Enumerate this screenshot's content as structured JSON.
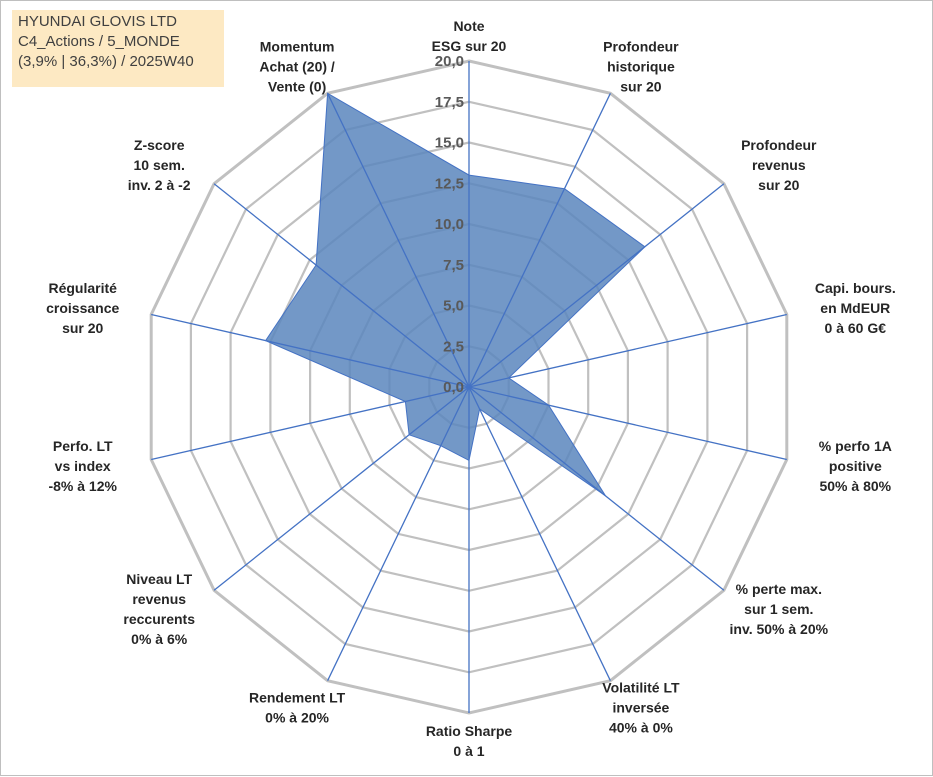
{
  "title": {
    "line1": "HYUNDAI GLOVIS LTD",
    "line2": "C4_Actions / 5_MONDE",
    "line3": "(3,9% | 36,3%) / 2025W40"
  },
  "chart_data": {
    "type": "radar",
    "scale": {
      "min": 0,
      "max": 20,
      "step": 2.5
    },
    "tick_labels": [
      "0,0",
      "2,5",
      "5,0",
      "7,5",
      "10,0",
      "12,5",
      "15,0",
      "17,5",
      "20,0"
    ],
    "axes": [
      {
        "label": [
          "Note",
          "ESG sur 20"
        ],
        "value": 13
      },
      {
        "label": [
          "Profondeur",
          "historique",
          "sur 20"
        ],
        "value": 13.5
      },
      {
        "label": [
          "Profondeur",
          "revenus",
          "sur 20"
        ],
        "value": 13.8
      },
      {
        "label": [
          "Capi. bours.",
          "en MdEUR",
          "0 à 60 G€"
        ],
        "value": 2.5
      },
      {
        "label": [
          "% perfo 1A",
          "positive",
          "50% à 80%"
        ],
        "value": 5
      },
      {
        "label": [
          "% perte max.",
          "sur 1 sem.",
          "inv. 50% à 20%"
        ],
        "value": 10.7
      },
      {
        "label": [
          "Volatilité LT",
          "inversée",
          "40% à 0%"
        ],
        "value": 1.5
      },
      {
        "label": [
          "Ratio Sharpe",
          "0 à 1"
        ],
        "value": 4.5
      },
      {
        "label": [
          "Rendement LT",
          "0% à 20%"
        ],
        "value": 4
      },
      {
        "label": [
          "Niveau LT",
          "revenus",
          "reccurents",
          "0% à 6%"
        ],
        "value": 4.7
      },
      {
        "label": [
          "Perfo. LT",
          "vs index",
          "-8% à 12%"
        ],
        "value": 4
      },
      {
        "label": [
          "Régularité",
          "croissance",
          "sur 20"
        ],
        "value": 12.8
      },
      {
        "label": [
          "Z-score",
          "10 sem.",
          "inv. 2 à -2"
        ],
        "value": 12
      },
      {
        "label": [
          "Momentum",
          "Achat (20) /",
          "Vente (0)"
        ],
        "value": 20
      }
    ],
    "grid": true,
    "legend": "none",
    "colors": {
      "fill": "#5b86bd",
      "line": "#4472c4",
      "grid": "#c0c0c0"
    }
  }
}
